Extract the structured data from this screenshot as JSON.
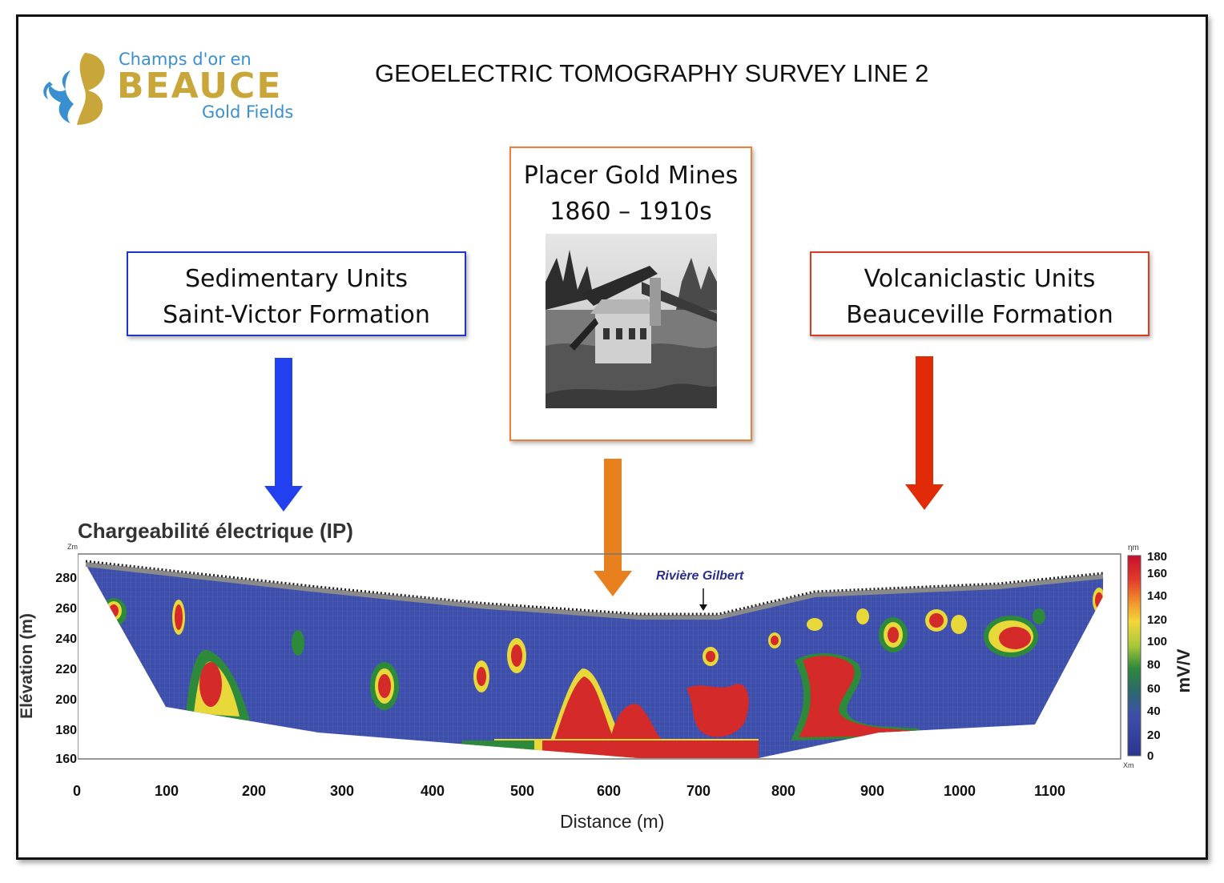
{
  "logo": {
    "line1": "Champs d'or en",
    "line2": "BEAUCE",
    "line3": "Gold Fields"
  },
  "header": {
    "title": "GEOELECTRIC TOMOGRAPHY SURVEY LINE 2"
  },
  "boxes": {
    "sedimentary": {
      "line1": "Sedimentary Units",
      "line2": "Saint-Victor Formation",
      "color": "#2233cc"
    },
    "placer": {
      "line1": "Placer Gold Mines",
      "line2": "1860 – 1910s",
      "color": "#e8823a"
    },
    "volcaniclastic": {
      "line1": "Volcaniclastic Units",
      "line2": "Beauceville Formation",
      "color": "#dd3a22"
    }
  },
  "arrows": {
    "blue": "#2340f0",
    "orange": "#e8801e",
    "red": "#e02a08"
  },
  "section": {
    "title": "Chargeabilité électrique (IP)",
    "z_label": "Zm",
    "x_corner_label": "Xm",
    "eta_label": "ηm",
    "river_label": "Rivière Gilbert",
    "ylabel": "Elévation (m)",
    "xlabel": "Distance (m)",
    "y_ticks": [
      "280",
      "260",
      "240",
      "220",
      "200",
      "180",
      "160"
    ],
    "x_ticks": [
      "0",
      "100",
      "200",
      "300",
      "400",
      "500",
      "600",
      "700",
      "800",
      "900",
      "1000",
      "1100"
    ],
    "colorbar_ticks": [
      "180",
      "160",
      "140",
      "120",
      "100",
      "80",
      "60",
      "40",
      "20",
      "0"
    ],
    "colorbar_unit": "mV/V",
    "background_color": "#3d4faa",
    "high_color": "#d42a2a"
  }
}
